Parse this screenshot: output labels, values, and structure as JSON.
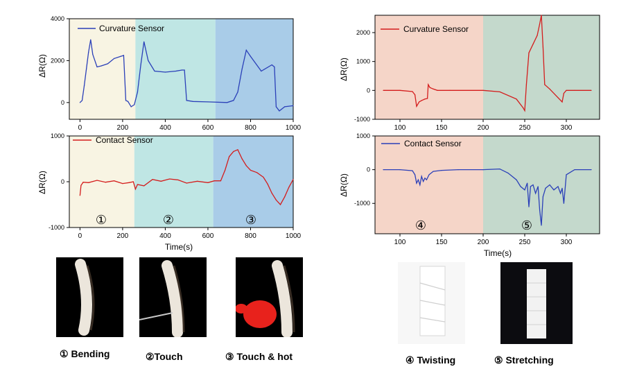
{
  "colors": {
    "blue_trace": "#2a3fb8",
    "red_trace": "#d41c1c",
    "bg_stage1": "#f8f4e3",
    "bg_stage2": "#bfe6e4",
    "bg_stage3": "#a9cce8",
    "bg_stage4": "#f5d5c8",
    "bg_stage5": "#c4d9cc"
  },
  "stage_markers": {
    "bending": "①",
    "touch": "②",
    "touch_hot": "③",
    "twisting": "④",
    "stretching": "⑤"
  },
  "captions": {
    "bending": "① Bending",
    "touch": "②Touch",
    "touch_hot": "③ Touch & hot",
    "twisting": "④ Twisting",
    "stretching": "⑤ Stretching"
  },
  "chart_data": [
    {
      "id": "left-top",
      "type": "line",
      "legend": "Curvature Sensor",
      "ylabel": "ΔR(Ω)",
      "xlim": [
        -50,
        1000
      ],
      "ylim": [
        -800,
        4000
      ],
      "xticks": [
        0,
        200,
        400,
        600,
        800,
        1000
      ],
      "yticks": [
        0,
        2000,
        4000
      ],
      "regions": [
        [
          -50,
          260,
          "bg_stage1"
        ],
        [
          260,
          635,
          "bg_stage2"
        ],
        [
          635,
          1000,
          "bg_stage3"
        ]
      ],
      "x": [
        0,
        10,
        20,
        30,
        40,
        50,
        60,
        80,
        100,
        130,
        160,
        190,
        205,
        215,
        225,
        240,
        255,
        270,
        285,
        300,
        320,
        350,
        400,
        450,
        478,
        490,
        500,
        530,
        600,
        690,
        720,
        740,
        760,
        780,
        800,
        850,
        900,
        912,
        920,
        935,
        960,
        1000
      ],
      "y": [
        0,
        100,
        800,
        1600,
        2400,
        3000,
        2300,
        1700,
        1750,
        1850,
        2100,
        2200,
        2250,
        100,
        50,
        -200,
        -100,
        500,
        1800,
        2900,
        2000,
        1500,
        1450,
        1500,
        1550,
        1550,
        100,
        50,
        30,
        0,
        100,
        500,
        1600,
        2500,
        2200,
        1500,
        1800,
        1700,
        -200,
        -400,
        -200,
        -150
      ]
    },
    {
      "id": "left-bottom",
      "type": "line",
      "legend": "Contact Sensor",
      "ylabel": "ΔR(Ω)",
      "xlabel": "Time(s)",
      "xlim": [
        -50,
        1000
      ],
      "ylim": [
        -1000,
        1000
      ],
      "xticks": [
        0,
        200,
        400,
        600,
        800,
        1000
      ],
      "yticks": [
        -1000,
        0,
        1000
      ],
      "regions": [
        [
          -50,
          255,
          "bg_stage1"
        ],
        [
          255,
          625,
          "bg_stage2"
        ],
        [
          625,
          1000,
          "bg_stage3"
        ]
      ],
      "x": [
        0,
        5,
        15,
        40,
        80,
        120,
        160,
        200,
        230,
        250,
        260,
        270,
        300,
        340,
        380,
        420,
        460,
        500,
        550,
        600,
        630,
        660,
        680,
        700,
        720,
        740,
        760,
        780,
        800,
        830,
        860,
        880,
        900,
        920,
        940,
        960,
        980,
        1000
      ],
      "y": [
        -300,
        -80,
        -10,
        -20,
        30,
        -10,
        20,
        -40,
        -20,
        0,
        -160,
        -60,
        -90,
        50,
        10,
        60,
        40,
        -30,
        10,
        -20,
        20,
        20,
        250,
        550,
        660,
        700,
        500,
        350,
        250,
        200,
        100,
        -50,
        -250,
        -400,
        -500,
        -330,
        -120,
        50
      ]
    },
    {
      "id": "right-top",
      "type": "line",
      "legend": "Curvature Sensor",
      "ylabel": "ΔR(Ω)",
      "xlim": [
        70,
        340
      ],
      "ylim": [
        -1000,
        2600
      ],
      "xticks": [
        100,
        150,
        200,
        250,
        300
      ],
      "yticks": [
        -1000,
        0,
        1000,
        2000
      ],
      "regions": [
        [
          70,
          200,
          "bg_stage4"
        ],
        [
          200,
          340,
          "bg_stage5"
        ]
      ],
      "x": [
        80,
        100,
        115,
        118,
        120,
        123,
        126,
        130,
        133,
        134,
        136,
        140,
        145,
        160,
        200,
        220,
        240,
        248,
        250,
        252,
        255,
        260,
        265,
        268,
        270,
        272,
        274,
        280,
        290,
        295,
        297,
        300,
        310,
        330
      ],
      "y": [
        0,
        0,
        -40,
        -150,
        -550,
        -400,
        -350,
        -300,
        -280,
        200,
        100,
        50,
        0,
        0,
        0,
        -50,
        -300,
        -600,
        -700,
        200,
        1300,
        1600,
        1900,
        2300,
        2600,
        1500,
        200,
        50,
        -250,
        -400,
        -100,
        0,
        0,
        0
      ]
    },
    {
      "id": "right-bottom",
      "type": "line",
      "legend": "Contact Sensor",
      "ylabel": "ΔR(Ω)",
      "xlabel": "Time(s)",
      "xlim": [
        70,
        340
      ],
      "ylim": [
        -1900,
        1000
      ],
      "xticks": [
        100,
        150,
        200,
        250,
        300
      ],
      "yticks": [
        -1000,
        0,
        1000
      ],
      "regions": [
        [
          70,
          200,
          "bg_stage4"
        ],
        [
          200,
          340,
          "bg_stage5"
        ]
      ],
      "x": [
        80,
        100,
        115,
        118,
        120,
        122,
        124,
        126,
        128,
        130,
        132,
        135,
        140,
        150,
        170,
        200,
        220,
        230,
        240,
        245,
        250,
        253,
        255,
        257,
        260,
        263,
        266,
        268,
        270,
        272,
        275,
        280,
        285,
        290,
        293,
        295,
        297,
        300,
        310,
        330
      ],
      "y": [
        0,
        0,
        -30,
        -150,
        -400,
        -300,
        -450,
        -200,
        -350,
        -250,
        -300,
        -150,
        -50,
        -20,
        0,
        0,
        20,
        -100,
        -300,
        -500,
        -600,
        -400,
        -1100,
        -500,
        -450,
        -700,
        -500,
        -1200,
        -1650,
        -800,
        -550,
        -450,
        -600,
        -500,
        -700,
        -550,
        -1000,
        -150,
        0,
        0
      ]
    }
  ]
}
